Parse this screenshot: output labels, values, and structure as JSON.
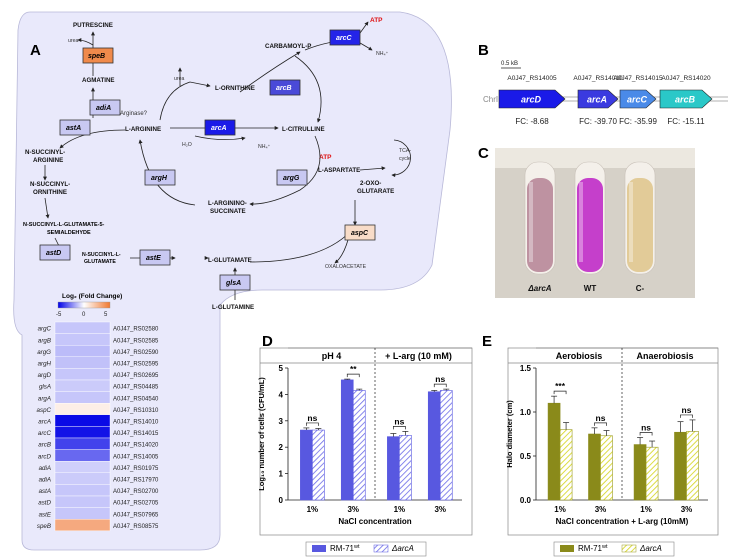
{
  "panels": {
    "a": "A",
    "b": "B",
    "c": "C",
    "d": "D",
    "e": "E"
  },
  "colors": {
    "pathway_bg": "#e8e8fb",
    "down_strong": "#1a1ae8",
    "down_mid": "#4a4ad8",
    "down_light": "#c8c8f2",
    "up_light": "#f8dcc8",
    "up_strong": "#f08a4b",
    "bar_wt_d": "#5858e0",
    "bar_wt_e": "#8a8a1a",
    "bar_mut_e": "#ecec5a",
    "atp_red": "#e01010"
  },
  "pathway": {
    "metabolites": {
      "putrescine": "PUTRESCINE",
      "urea_top": "urea",
      "agmatine": "AGMATINE",
      "urea_mid": "urea",
      "ornithine": "L-ORNITHINE",
      "carbamoyl": "CARBAMOYL-P",
      "atp_top": "ATP",
      "nh4_top": "NH₄⁺",
      "arginase": "Arginase?",
      "arginine": "L-ARGININE",
      "citrulline": "L-CITRULLINE",
      "h2o": "H₂O",
      "nh4_mid": "NH₄⁺",
      "nsucc_arg": "N-SUCCINYL-ARGININE",
      "nsucc_orn": "N-SUCCINYL-ORNITHINE",
      "atp_mid": "ATP",
      "aspartate": "L-ASPARTATE",
      "tca": "TCA-cycle",
      "oxoglut": "2-OXO-GLUTARATE",
      "arginosucc": "L-ARGININO-SUCCINATE",
      "nsucc_glu": "N-SUCCINYL-L-GLUTAMATE-5-SEMIALDEHYDE",
      "nsucc_glutamate": "N-SUCCINYL-L-GLUTAMATE",
      "glutamate": "L-GLUTAMATE",
      "oxaloacetate": "OXALOACETATE",
      "glutamine": "L-GLUTAMINE"
    },
    "enzymes": {
      "speB": "speB",
      "arcC": "arcC",
      "adiA": "adiA",
      "arcB": "arcB",
      "astA": "astA",
      "arcA": "arcA",
      "argH": "argH",
      "argG": "argG",
      "astD": "astD",
      "astE": "astE",
      "aspC": "aspC",
      "glsA": "glsA"
    }
  },
  "heatmap": {
    "title": "Log₂ (Fold Change)",
    "scale_min": "-5",
    "scale_zero": "0",
    "scale_max": "5",
    "rows": [
      {
        "gene": "argC",
        "locus": "A0J47_RS02580",
        "value": -1.0
      },
      {
        "gene": "argB",
        "locus": "A0J47_RS02585",
        "value": -1.0
      },
      {
        "gene": "argG",
        "locus": "A0J47_RS02590",
        "value": -1.2
      },
      {
        "gene": "argH",
        "locus": "A0J47_RS02595",
        "value": -1.1
      },
      {
        "gene": "argD",
        "locus": "A0J47_RS02695",
        "value": -1.0
      },
      {
        "gene": "glsA",
        "locus": "A0J47_RS04485",
        "value": -0.9
      },
      {
        "gene": "argA",
        "locus": "A0J47_RS04540",
        "value": -1.0
      },
      {
        "gene": "aspC",
        "locus": "A0J47_RS10310",
        "value": 0.6
      },
      {
        "gene": "arcA",
        "locus": "A0J47_RS14010",
        "value": -5.0
      },
      {
        "gene": "arcC",
        "locus": "A0J47_RS14015",
        "value": -4.8
      },
      {
        "gene": "arcB",
        "locus": "A0J47_RS14020",
        "value": -3.8
      },
      {
        "gene": "arcD",
        "locus": "A0J47_RS14005",
        "value": -3.0
      },
      {
        "gene": "adiA",
        "locus": "A0J47_RS01975",
        "value": -0.8
      },
      {
        "gene": "adiA",
        "locus": "A0J47_RS17970",
        "value": -0.9
      },
      {
        "gene": "astA",
        "locus": "A0J47_RS02700",
        "value": -1.0
      },
      {
        "gene": "astD",
        "locus": "A0J47_RS02705",
        "value": -1.0
      },
      {
        "gene": "astE",
        "locus": "A0J47_RS07965",
        "value": -1.0
      },
      {
        "gene": "speB",
        "locus": "A0J47_RS08575",
        "value": 3.2
      }
    ]
  },
  "operon": {
    "scale": "0.5 kB",
    "chrom": "ChrI",
    "genes": [
      {
        "name": "arcD",
        "locus": "A0J47_RS14005",
        "fc": "FC: -8.68",
        "color": "#1a1ae8"
      },
      {
        "name": "arcA",
        "locus": "A0J47_RS14010",
        "fc": "FC: -39.70",
        "color": "#3a3ae0"
      },
      {
        "name": "arcC",
        "locus": "A0J47_RS14015",
        "fc": "FC: -35.99",
        "color": "#4a8ae8"
      },
      {
        "name": "arcB",
        "locus": "A0J47_RS14020",
        "fc": "FC: -15.11",
        "color": "#2ac8c8"
      }
    ]
  },
  "tubes": {
    "labels": [
      "ΔarcA",
      "WT",
      "C-"
    ],
    "colors": [
      "#b88a9a",
      "#c030c8",
      "#e0c890"
    ]
  },
  "chart_data": [
    {
      "type": "bar",
      "panel": "D",
      "ylabel": "Log₁₀ number of cells (CFU/mL)",
      "xlabel": "NaCl concentration",
      "ylim": [
        0,
        5
      ],
      "yticks": [
        "0",
        "1",
        "2",
        "3",
        "4",
        "5"
      ],
      "groups": [
        {
          "label": "pH 4",
          "categories": [
            "1%",
            "3%"
          ],
          "significance": [
            "ns",
            "**"
          ]
        },
        {
          "label": "+ L-arg (10 mM)",
          "categories": [
            "1%",
            "3%"
          ],
          "significance": [
            "ns",
            "ns"
          ]
        }
      ],
      "series": [
        {
          "name": "RM-71",
          "name_sup": "wt",
          "values": [
            2.65,
            4.55,
            2.4,
            4.1
          ],
          "errors": [
            0.08,
            0.03,
            0.12,
            0.05
          ]
        },
        {
          "name": "ΔarcA",
          "values": [
            2.65,
            4.15,
            2.45,
            4.15
          ],
          "errors": [
            0.06,
            0.05,
            0.15,
            0.05
          ]
        }
      ]
    },
    {
      "type": "bar",
      "panel": "E",
      "ylabel": "Halo diameter (cm)",
      "xlabel": "NaCl concentration + L-arg (10mM)",
      "ylim": [
        0,
        1.5
      ],
      "yticks": [
        "0.0",
        "0.5",
        "1.0",
        "1.5"
      ],
      "groups": [
        {
          "label": "Aerobiosis",
          "categories": [
            "1%",
            "3%"
          ],
          "significance": [
            "***",
            "ns"
          ]
        },
        {
          "label": "Anaerobiosis",
          "categories": [
            "1%",
            "3%"
          ],
          "significance": [
            "ns",
            "ns"
          ]
        }
      ],
      "series": [
        {
          "name": "RM-71",
          "name_sup": "wt",
          "values": [
            1.1,
            0.75,
            0.63,
            0.77
          ],
          "errors": [
            0.08,
            0.07,
            0.08,
            0.12
          ]
        },
        {
          "name": "ΔarcA",
          "values": [
            0.8,
            0.73,
            0.6,
            0.78
          ],
          "errors": [
            0.08,
            0.06,
            0.07,
            0.13
          ]
        }
      ]
    }
  ]
}
